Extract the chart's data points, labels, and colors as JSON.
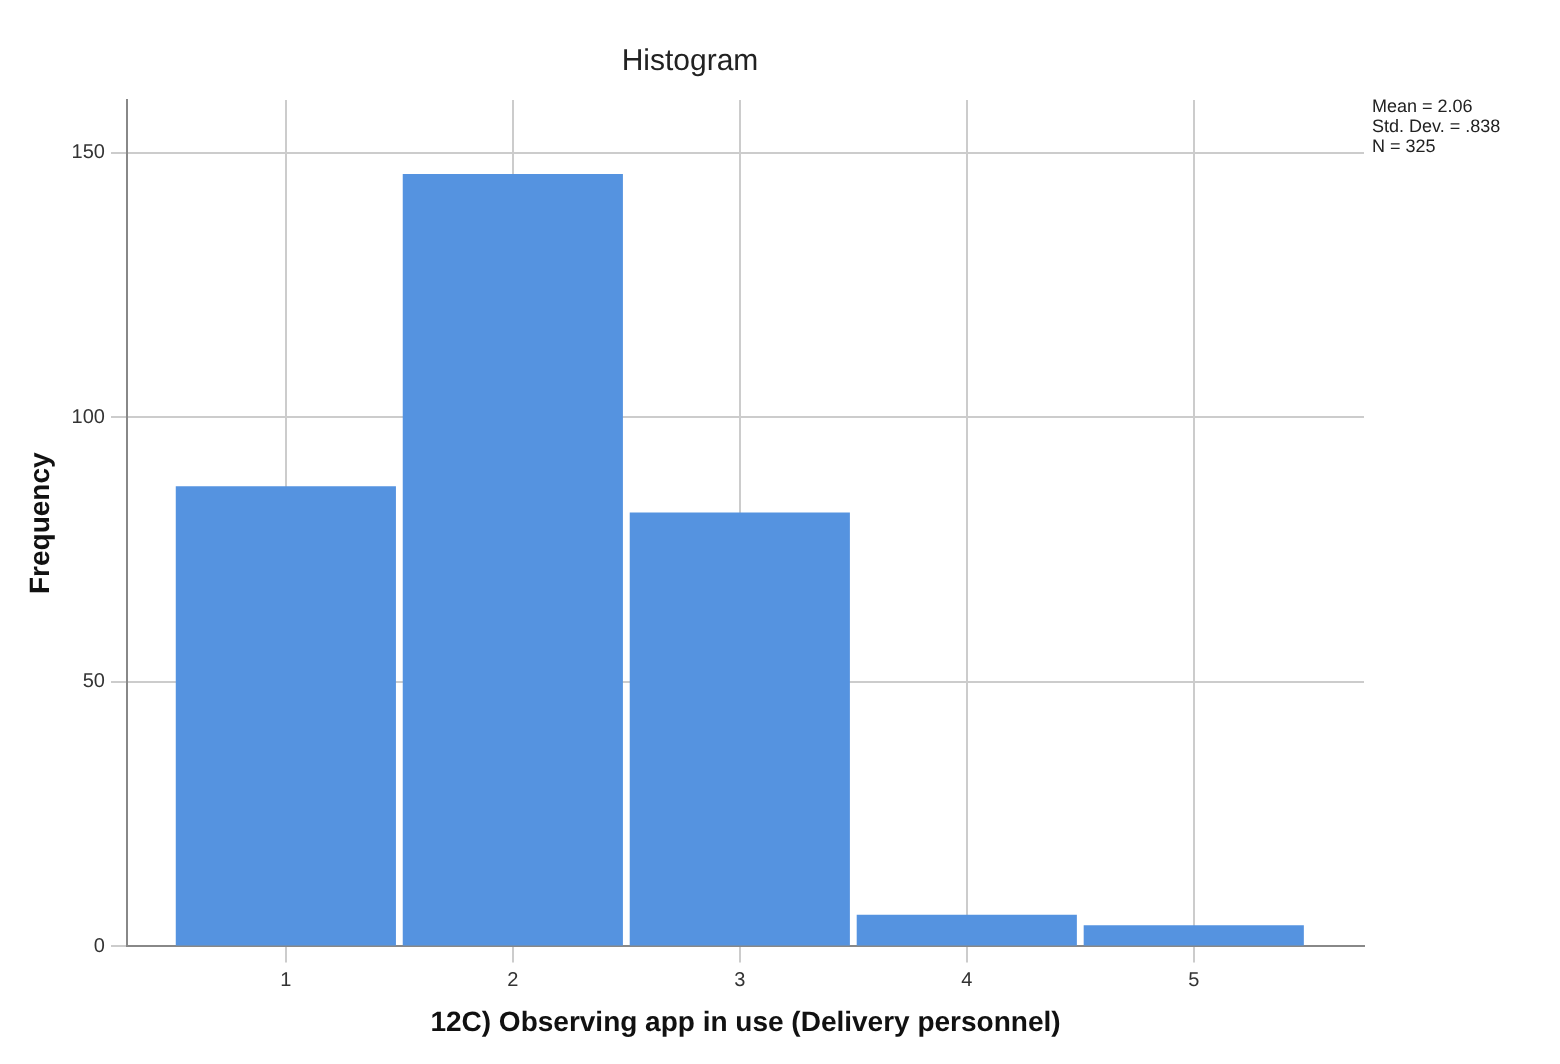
{
  "chart_data": {
    "type": "histogram",
    "title": "Histogram",
    "xlabel": "12C) Observing app in use (Delivery personnel)",
    "ylabel": "Frequency",
    "bins": [
      0.5,
      1.5,
      2.5,
      3.5,
      4.5,
      5.5
    ],
    "values": [
      87,
      146,
      82,
      6,
      4
    ],
    "color": "#5593e0",
    "xlim": [
      0.3,
      5.75
    ],
    "xticks": [
      1,
      2,
      3,
      4,
      5
    ],
    "ylim": [
      0,
      160
    ],
    "yticks": [
      0,
      50,
      100,
      150
    ],
    "grid": true,
    "annotations": [
      "Mean = 2.06\nStd. Dev. = .838\nN = 325"
    ]
  }
}
